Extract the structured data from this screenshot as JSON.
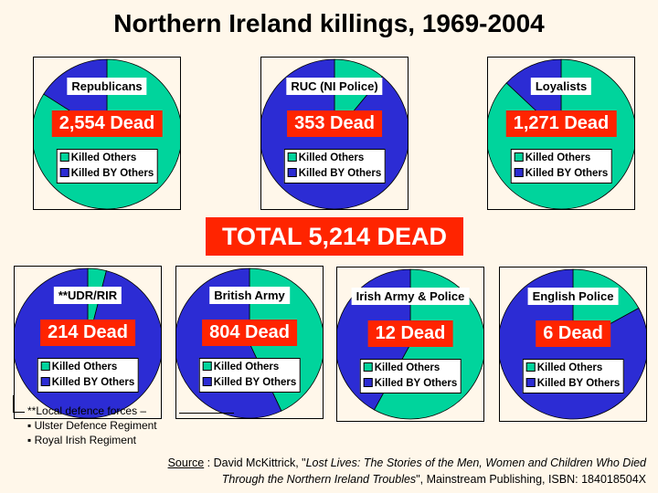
{
  "title": "Northern Ireland killings, 1969-2004",
  "total": "TOTAL 5,214 DEAD",
  "legend": {
    "others": "Killed Others",
    "by_others": "Killed BY Others"
  },
  "colors": {
    "others": "#00d49c",
    "by_others": "#2c2cd4",
    "dead_bg": "#ff2400"
  },
  "chart_data": [
    {
      "type": "pie",
      "title": "Republicans",
      "label": "2,554 Dead",
      "total": 2554,
      "slices": [
        {
          "name": "Killed Others",
          "value": 0.84
        },
        {
          "name": "Killed BY Others",
          "value": 0.16
        }
      ]
    },
    {
      "type": "pie",
      "title": "RUC (NI Police)",
      "label": "353 Dead",
      "total": 353,
      "slices": [
        {
          "name": "Killed Others",
          "value": 0.11
        },
        {
          "name": "Killed BY Others",
          "value": 0.89
        }
      ]
    },
    {
      "type": "pie",
      "title": "Loyalists",
      "label": "1,271 Dead",
      "total": 1271,
      "slices": [
        {
          "name": "Killed Others",
          "value": 0.87
        },
        {
          "name": "Killed BY Others",
          "value": 0.13
        }
      ]
    },
    {
      "type": "pie",
      "title": "**UDR/RIR",
      "label": "214 Dead",
      "total": 214,
      "slices": [
        {
          "name": "Killed Others",
          "value": 0.04
        },
        {
          "name": "Killed BY Others",
          "value": 0.96
        }
      ]
    },
    {
      "type": "pie",
      "title": "British Army",
      "label": "804 Dead",
      "total": 804,
      "slices": [
        {
          "name": "Killed Others",
          "value": 0.43
        },
        {
          "name": "Killed BY Others",
          "value": 0.57
        }
      ]
    },
    {
      "type": "pie",
      "title": "Irish Army & Police",
      "label": "12 Dead",
      "total": 12,
      "slices": [
        {
          "name": "Killed Others",
          "value": 0.58
        },
        {
          "name": "Killed BY Others",
          "value": 0.42
        }
      ]
    },
    {
      "type": "pie",
      "title": "English Police",
      "label": "6 Dead",
      "total": 6,
      "slices": [
        {
          "name": "Killed Others",
          "value": 0.17
        },
        {
          "name": "Killed BY Others",
          "value": 0.83
        }
      ]
    }
  ],
  "note": {
    "heading": "**Local defence forces –",
    "items": [
      "▪ Ulster Defence Regiment",
      "▪ Royal Irish Regiment"
    ]
  },
  "source": {
    "label": "Source",
    "line1_a": " : David McKittrick, \"",
    "line1_b": "Lost Lives: The Stories of the Men, Women and Children Who Died",
    "line2_a": "Through the Northern Ireland Troubles",
    "line2_b": "\", Mainstream Publishing, ISBN: 184018504X"
  }
}
